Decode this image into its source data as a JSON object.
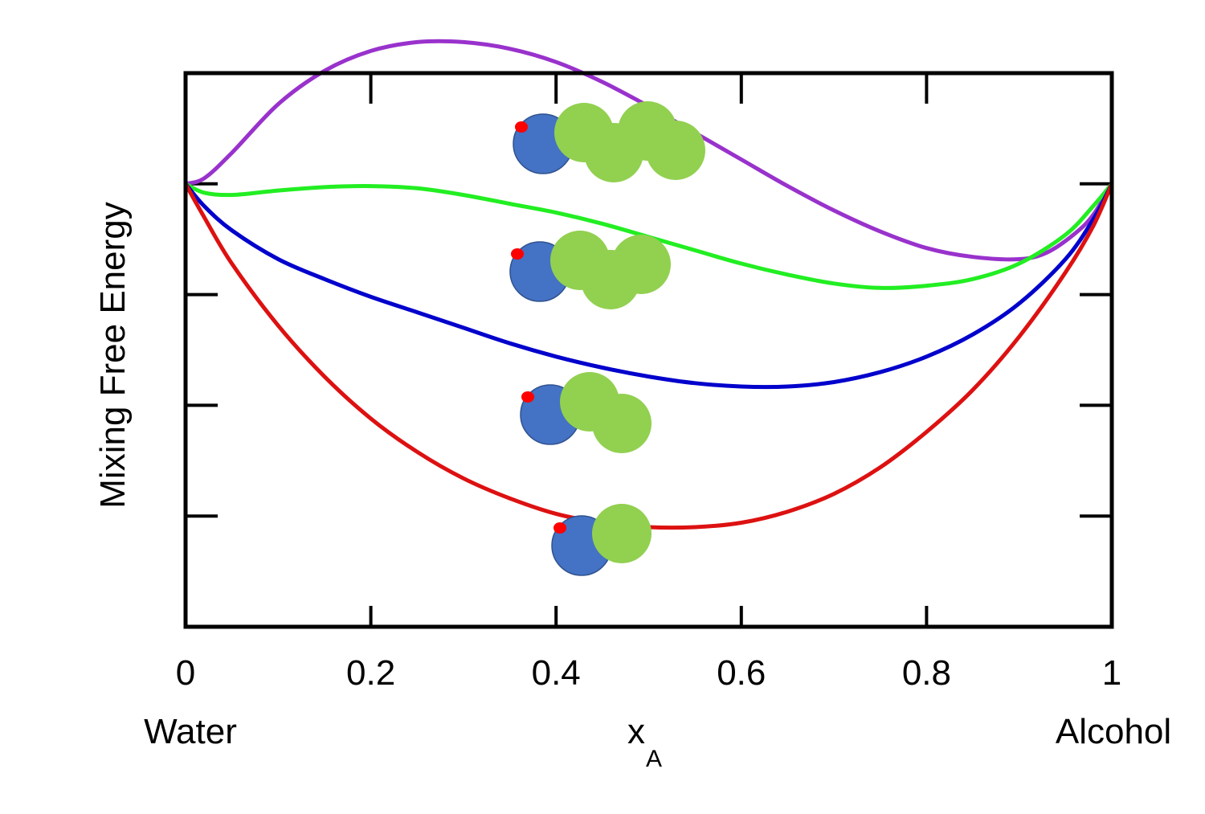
{
  "chart_data": {
    "type": "line",
    "title": "",
    "xlabel": "x",
    "xlabel_subscript": "A",
    "ylabel": "Mixing Free Energy",
    "x_end_labels": {
      "left": "Water",
      "right": "Alcohol"
    },
    "xlim": [
      0,
      1
    ],
    "ylim": [
      -4,
      1
    ],
    "x_ticks": [
      "0",
      "0.2",
      "0.4",
      "0.6",
      "0.8",
      "1"
    ],
    "x_tick_values": [
      0,
      0.2,
      0.4,
      0.6,
      0.8,
      1
    ],
    "y_tick_values": [
      -3,
      -2,
      -1,
      0,
      1
    ],
    "grid": false,
    "legend": "none",
    "series": [
      {
        "color": "#9932CC",
        "molecule_carbons": 4,
        "points": [
          [
            0,
            0
          ],
          [
            0.02,
            0.05
          ],
          [
            0.05,
            0.28
          ],
          [
            0.1,
            0.72
          ],
          [
            0.15,
            1.02
          ],
          [
            0.2,
            1.2
          ],
          [
            0.25,
            1.28
          ],
          [
            0.3,
            1.28
          ],
          [
            0.35,
            1.22
          ],
          [
            0.4,
            1.1
          ],
          [
            0.45,
            0.92
          ],
          [
            0.5,
            0.7
          ],
          [
            0.55,
            0.46
          ],
          [
            0.6,
            0.22
          ],
          [
            0.65,
            -0.02
          ],
          [
            0.7,
            -0.24
          ],
          [
            0.75,
            -0.43
          ],
          [
            0.8,
            -0.58
          ],
          [
            0.85,
            -0.66
          ],
          [
            0.9,
            -0.68
          ],
          [
            0.93,
            -0.62
          ],
          [
            0.96,
            -0.45
          ],
          [
            0.98,
            -0.28
          ],
          [
            1,
            0
          ]
        ]
      },
      {
        "color": "#22EE22",
        "molecule_carbons": 3,
        "points": [
          [
            0,
            0
          ],
          [
            0.02,
            -0.08
          ],
          [
            0.05,
            -0.1
          ],
          [
            0.1,
            -0.06
          ],
          [
            0.15,
            -0.03
          ],
          [
            0.2,
            -0.02
          ],
          [
            0.25,
            -0.04
          ],
          [
            0.3,
            -0.1
          ],
          [
            0.35,
            -0.18
          ],
          [
            0.4,
            -0.26
          ],
          [
            0.45,
            -0.36
          ],
          [
            0.5,
            -0.48
          ],
          [
            0.55,
            -0.6
          ],
          [
            0.6,
            -0.72
          ],
          [
            0.65,
            -0.82
          ],
          [
            0.7,
            -0.9
          ],
          [
            0.75,
            -0.94
          ],
          [
            0.8,
            -0.92
          ],
          [
            0.85,
            -0.86
          ],
          [
            0.9,
            -0.72
          ],
          [
            0.95,
            -0.46
          ],
          [
            0.98,
            -0.2
          ],
          [
            1,
            0
          ]
        ]
      },
      {
        "color": "#0000CC",
        "molecule_carbons": 2,
        "points": [
          [
            0,
            0
          ],
          [
            0.02,
            -0.2
          ],
          [
            0.05,
            -0.42
          ],
          [
            0.1,
            -0.68
          ],
          [
            0.15,
            -0.86
          ],
          [
            0.2,
            -1.02
          ],
          [
            0.25,
            -1.16
          ],
          [
            0.3,
            -1.3
          ],
          [
            0.35,
            -1.44
          ],
          [
            0.4,
            -1.56
          ],
          [
            0.45,
            -1.66
          ],
          [
            0.5,
            -1.74
          ],
          [
            0.55,
            -1.8
          ],
          [
            0.6,
            -1.83
          ],
          [
            0.65,
            -1.83
          ],
          [
            0.7,
            -1.79
          ],
          [
            0.75,
            -1.7
          ],
          [
            0.8,
            -1.56
          ],
          [
            0.85,
            -1.36
          ],
          [
            0.9,
            -1.08
          ],
          [
            0.95,
            -0.68
          ],
          [
            0.98,
            -0.32
          ],
          [
            1,
            0
          ]
        ]
      },
      {
        "color": "#DD1111",
        "molecule_carbons": 1,
        "points": [
          [
            0,
            0
          ],
          [
            0.02,
            -0.3
          ],
          [
            0.05,
            -0.72
          ],
          [
            0.1,
            -1.28
          ],
          [
            0.15,
            -1.74
          ],
          [
            0.2,
            -2.12
          ],
          [
            0.25,
            -2.42
          ],
          [
            0.3,
            -2.66
          ],
          [
            0.35,
            -2.84
          ],
          [
            0.4,
            -2.98
          ],
          [
            0.45,
            -3.06
          ],
          [
            0.5,
            -3.1
          ],
          [
            0.55,
            -3.1
          ],
          [
            0.6,
            -3.06
          ],
          [
            0.65,
            -2.96
          ],
          [
            0.7,
            -2.8
          ],
          [
            0.75,
            -2.56
          ],
          [
            0.8,
            -2.24
          ],
          [
            0.85,
            -1.86
          ],
          [
            0.9,
            -1.38
          ],
          [
            0.95,
            -0.8
          ],
          [
            0.98,
            -0.38
          ],
          [
            1,
            0
          ]
        ]
      }
    ]
  },
  "colors": {
    "oxygen": "#4472C4",
    "hydrogen": "#FF0000",
    "carbon": "#92D050",
    "axis": "#000000"
  }
}
